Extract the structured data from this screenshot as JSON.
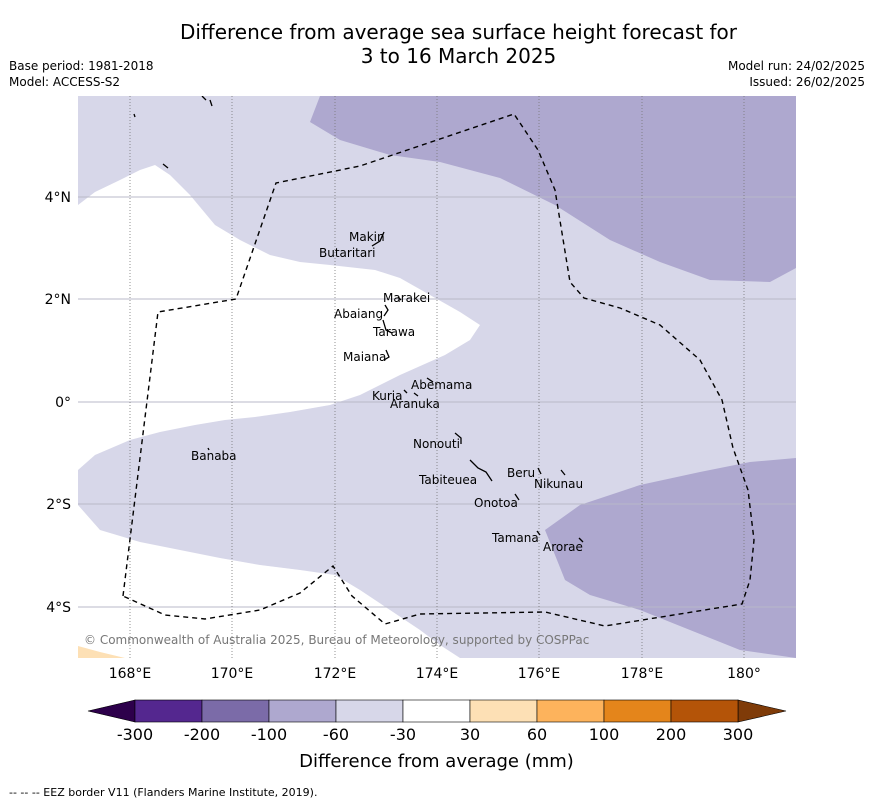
{
  "title_line1": "Difference from average sea surface height forecast for",
  "title_line2": "3 to 16 March 2025",
  "base_period": "Base period: 1981-2018",
  "model": "Model: ACCESS-S2",
  "model_run": "Model run: 24/02/2025",
  "issued": "Issued: 26/02/2025",
  "copyright": "© Commonwealth of Australia 2025, Bureau of Meteorology, supported by COSPPac",
  "lon_ticks": [
    "168°E",
    "170°E",
    "172°E",
    "174°E",
    "176°E",
    "178°E",
    "180°"
  ],
  "lat_ticks": [
    "4°N",
    "2°N",
    "0°",
    "2°S",
    "4°S"
  ],
  "islands": [
    "Makin",
    "Butaritari",
    "Marakei",
    "Abaiang",
    "Tarawa",
    "Maiana",
    "Abemama",
    "Kuria",
    "Aranuka",
    "Banaba",
    "Nonouti",
    "Tabiteuea",
    "Beru",
    "Nikunau",
    "Onotoa",
    "Tamana",
    "Arorae"
  ],
  "colorbar": {
    "ticks": [
      "-300",
      "-200",
      "-100",
      "-60",
      "-30",
      "30",
      "60",
      "100",
      "200",
      "300"
    ],
    "colors": [
      "#54278f",
      "#7b6ba8",
      "#aea8cf",
      "#d7d7e9",
      "#ffffff",
      "#fde0b5",
      "#fdb35c",
      "#e4851b",
      "#b45408"
    ],
    "under_color": "#2d004b",
    "over_color": "#7f3b08",
    "label": "Difference from average (mm)"
  },
  "eez_note": "--  --  -- EEZ border V11 (Flanders Marine Institute, 2019)."
}
